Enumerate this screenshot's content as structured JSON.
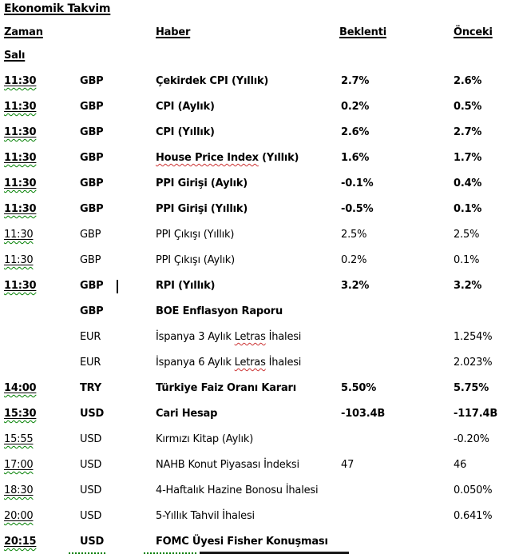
{
  "title": "Ekonomik Takvim",
  "columns": {
    "time": "Zaman",
    "news": "Haber",
    "forecast": "Beklenti",
    "previous": "Önceki"
  },
  "day": "Salı",
  "colors": {
    "text": "#000000",
    "grammar_wavy_green": "#008000",
    "spell_wavy_red": "#cc3333",
    "background": "#ffffff"
  },
  "icons": {},
  "rows": [
    {
      "time": "11:30",
      "currency": "GBP",
      "news": [
        {
          "text": "Çekirdek CPI (Yıllık)",
          "wavy": false
        }
      ],
      "forecast": "2.7%",
      "previous": "2.6%",
      "bold": true
    },
    {
      "time": "11:30",
      "currency": "GBP",
      "news": [
        {
          "text": "CPI (Aylık)",
          "wavy": false
        }
      ],
      "forecast": "0.2%",
      "previous": "0.5%",
      "bold": true
    },
    {
      "time": "11:30",
      "currency": "GBP",
      "news": [
        {
          "text": "CPI (Yıllık)",
          "wavy": false
        }
      ],
      "forecast": "2.6%",
      "previous": "2.7%",
      "bold": true
    },
    {
      "time": "11:30",
      "currency": "GBP",
      "news": [
        {
          "text": "House Price Index",
          "wavy": true
        },
        {
          "text": " (Yıllık)",
          "wavy": false
        }
      ],
      "forecast": "1.6%",
      "previous": "1.7%",
      "bold": true
    },
    {
      "time": "11:30",
      "currency": "GBP",
      "news": [
        {
          "text": "PPI Girişi (Aylık)",
          "wavy": false
        }
      ],
      "forecast": "-0.1%",
      "previous": "0.4%",
      "bold": true
    },
    {
      "time": "11:30",
      "currency": "GBP",
      "news": [
        {
          "text": "PPI Girişi (Yıllık)",
          "wavy": false
        }
      ],
      "forecast": "-0.5%",
      "previous": "0.1%",
      "bold": true
    },
    {
      "time": "11:30",
      "currency": "GBP",
      "news": [
        {
          "text": "PPI Çıkışı (Yıllık)",
          "wavy": false
        }
      ],
      "forecast": "2.5%",
      "previous": "2.5%",
      "bold": false
    },
    {
      "time": "11:30",
      "currency": "GBP",
      "news": [
        {
          "text": "PPI Çıkışı (Aylık)",
          "wavy": false
        }
      ],
      "forecast": "0.2%",
      "previous": "0.1%",
      "bold": false
    },
    {
      "time": "11:30",
      "currency": "GBP",
      "news": [
        {
          "text": "RPI (Yıllık)",
          "wavy": false
        }
      ],
      "forecast": "3.2%",
      "previous": "3.2%",
      "bold": true,
      "caret": true
    },
    {
      "time": "",
      "currency": "GBP",
      "news": [
        {
          "text": "BOE Enflasyon Raporu",
          "wavy": false
        }
      ],
      "forecast": "",
      "previous": "",
      "bold": true
    },
    {
      "time": "",
      "currency": "EUR",
      "news": [
        {
          "text": "İspanya 3 Aylık ",
          "wavy": false
        },
        {
          "text": "Letras",
          "wavy": true
        },
        {
          "text": " İhalesi",
          "wavy": false
        }
      ],
      "forecast": "",
      "previous": "1.254%",
      "bold": false
    },
    {
      "time": "",
      "currency": "EUR",
      "news": [
        {
          "text": "İspanya 6 Aylık ",
          "wavy": false
        },
        {
          "text": "Letras",
          "wavy": true
        },
        {
          "text": " İhalesi",
          "wavy": false
        }
      ],
      "forecast": "",
      "previous": "2.023%",
      "bold": false
    },
    {
      "time": "14:00",
      "currency": "TRY",
      "news": [
        {
          "text": "Türkiye Faiz Oranı Kararı",
          "wavy": false
        }
      ],
      "forecast": "5.50%",
      "previous": "5.75%",
      "bold": true
    },
    {
      "time": "15:30",
      "currency": "USD",
      "news": [
        {
          "text": "Cari Hesap",
          "wavy": false
        }
      ],
      "forecast": "-103.4B",
      "previous": "-117.4B",
      "bold": true
    },
    {
      "time": "15:55",
      "currency": "USD",
      "news": [
        {
          "text": "Kırmızı Kitap (Aylık)",
          "wavy": false
        }
      ],
      "forecast": "",
      "previous": "-0.20%",
      "bold": false
    },
    {
      "time": "17:00",
      "currency": "USD",
      "news": [
        {
          "text": "NAHB Konut Piyasası İndeksi",
          "wavy": false
        }
      ],
      "forecast": "47",
      "previous": "46",
      "bold": false
    },
    {
      "time": "18:30",
      "currency": "USD",
      "news": [
        {
          "text": "4-Haftalık Hazine Bonosu İhalesi",
          "wavy": false
        }
      ],
      "forecast": "",
      "previous": "0.050%",
      "bold": false
    },
    {
      "time": "20:00",
      "currency": "USD",
      "news": [
        {
          "text": "5-Yıllık Tahvil İhalesi",
          "wavy": false
        }
      ],
      "forecast": "",
      "previous": "0.641%",
      "bold": false
    },
    {
      "time": "20:15",
      "currency": "USD",
      "news": [
        {
          "text": "FOMC Üyesi Fisher Konuşması",
          "wavy": false
        }
      ],
      "forecast": "",
      "previous": "",
      "bold": true
    }
  ]
}
